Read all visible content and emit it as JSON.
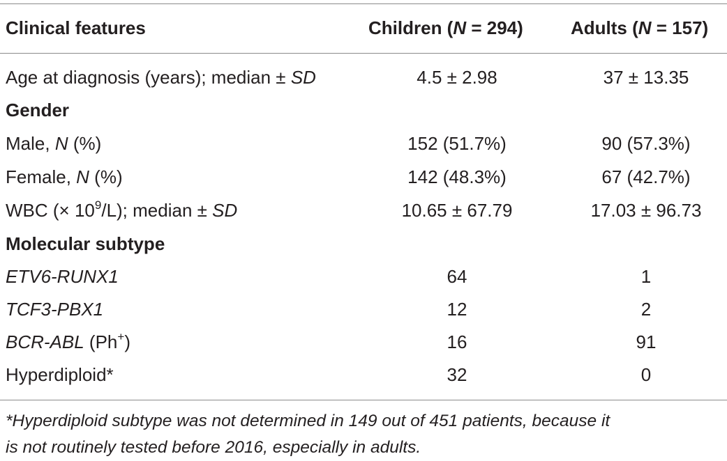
{
  "header": {
    "col1": "Clinical features",
    "col2_prefix": "Children (",
    "col2_n": "N",
    "col2_suffix": " = 294)",
    "col3_prefix": "Adults (",
    "col3_n": "N",
    "col3_suffix": " = 157)"
  },
  "rows": {
    "age": {
      "label_pre": "Age at diagnosis (years); median ± ",
      "label_sd": "SD",
      "children": "4.5 ± 2.98",
      "adults": "37 ± 13.35"
    },
    "gender": {
      "label": "Gender"
    },
    "male": {
      "label_pre": "Male, ",
      "label_n": "N",
      "label_post": " (%)",
      "children": "152 (51.7%)",
      "adults": "90 (57.3%)"
    },
    "female": {
      "label_pre": "Female, ",
      "label_n": "N",
      "label_post": " (%)",
      "children": "142 (48.3%)",
      "adults": "67 (42.7%)"
    },
    "wbc": {
      "label_pre": "WBC (× 10",
      "label_sup": "9",
      "label_mid": "/L); median ± ",
      "label_sd": "SD",
      "children": "10.65 ± 67.79",
      "adults": "17.03 ± 96.73"
    },
    "molecular": {
      "label": "Molecular subtype"
    },
    "etv6": {
      "label": "ETV6-RUNX1",
      "children": "64",
      "adults": "1"
    },
    "tcf3": {
      "label": "TCF3-PBX1",
      "children": "12",
      "adults": "2"
    },
    "bcr": {
      "label_it": "BCR-ABL",
      "label_post": " (Ph",
      "label_sup": "+",
      "label_close": ")",
      "children": "16",
      "adults": "91"
    },
    "hyper": {
      "label": "Hyperdiploid*",
      "children": "32",
      "adults": "0"
    }
  },
  "footnote": {
    "line1": "*Hyperdiploid subtype was not determined in 149 out of 451 patients, because it",
    "line2": "is not routinely tested before 2016, especially in adults."
  }
}
